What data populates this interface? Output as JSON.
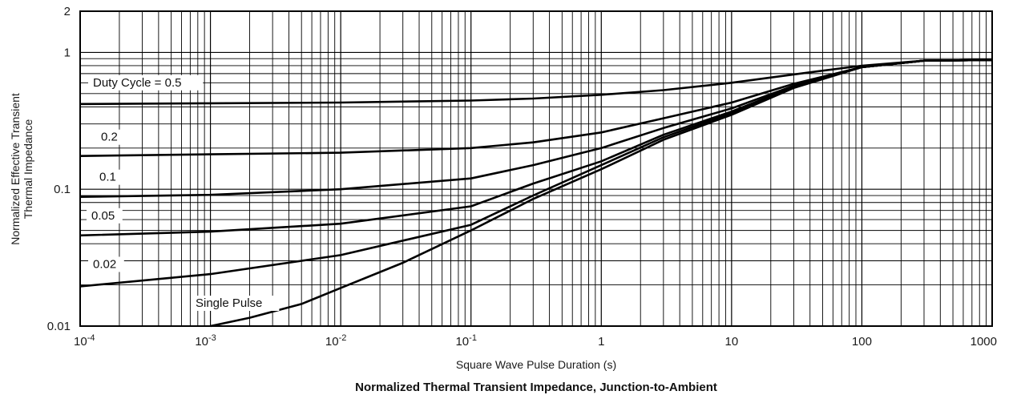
{
  "chart_data": {
    "type": "line",
    "title": "Normalized Thermal Transient Impedance, Junction-to-Ambient",
    "xlabel": "Square Wave Pulse Duration (s)",
    "ylabel_line1": "Normalized Effective Transient",
    "ylabel_line2": "Thermal Impedance",
    "x_scale": "log",
    "y_scale": "log",
    "xlim": [
      0.0001,
      1000
    ],
    "ylim": [
      0.01,
      2
    ],
    "grid": true,
    "legend": "none",
    "x_ticks": [
      {
        "base": "10",
        "exp": "-4",
        "value": 0.0001
      },
      {
        "base": "10",
        "exp": "-3",
        "value": 0.001
      },
      {
        "base": "10",
        "exp": "-2",
        "value": 0.01
      },
      {
        "base": "10",
        "exp": "-1",
        "value": 0.1
      },
      {
        "base": "1",
        "exp": "",
        "value": 1
      },
      {
        "base": "10",
        "exp": "",
        "value": 10
      },
      {
        "base": "100",
        "exp": "",
        "value": 100
      },
      {
        "base": "1000",
        "exp": "",
        "value": 1000
      }
    ],
    "y_ticks": [
      {
        "label": "2",
        "value": 2
      },
      {
        "label": "1",
        "value": 1
      },
      {
        "label": "0.1",
        "value": 0.1
      },
      {
        "label": "0.01",
        "value": 0.01
      }
    ],
    "series": [
      {
        "name": "Duty Cycle = 0.5",
        "x": [
          0.0001,
          0.001,
          0.01,
          0.1,
          0.3,
          1,
          3,
          10,
          30,
          100,
          300,
          1000
        ],
        "y": [
          0.42,
          0.425,
          0.43,
          0.445,
          0.46,
          0.49,
          0.53,
          0.6,
          0.69,
          0.8,
          0.87,
          0.88
        ]
      },
      {
        "name": "0.2",
        "x": [
          0.0001,
          0.001,
          0.01,
          0.1,
          0.3,
          1,
          3,
          10,
          30,
          100,
          300,
          1000
        ],
        "y": [
          0.175,
          0.18,
          0.185,
          0.2,
          0.22,
          0.26,
          0.33,
          0.43,
          0.59,
          0.78,
          0.87,
          0.88
        ]
      },
      {
        "name": "0.1",
        "x": [
          0.0001,
          0.001,
          0.01,
          0.1,
          0.3,
          1,
          3,
          10,
          30,
          100,
          300,
          1000
        ],
        "y": [
          0.088,
          0.091,
          0.1,
          0.12,
          0.15,
          0.2,
          0.28,
          0.39,
          0.57,
          0.78,
          0.87,
          0.88
        ]
      },
      {
        "name": "0.05",
        "x": [
          0.0001,
          0.001,
          0.01,
          0.1,
          0.3,
          1,
          3,
          10,
          30,
          100,
          300,
          1000
        ],
        "y": [
          0.046,
          0.049,
          0.056,
          0.075,
          0.11,
          0.16,
          0.25,
          0.37,
          0.56,
          0.78,
          0.87,
          0.88
        ]
      },
      {
        "name": "0.02",
        "x": [
          0.0001,
          0.001,
          0.01,
          0.1,
          0.3,
          1,
          3,
          10,
          30,
          100,
          300,
          1000
        ],
        "y": [
          0.0195,
          0.024,
          0.033,
          0.055,
          0.09,
          0.15,
          0.24,
          0.36,
          0.56,
          0.78,
          0.87,
          0.88
        ]
      },
      {
        "name": "Single Pulse",
        "x": [
          0.001,
          0.002,
          0.005,
          0.01,
          0.03,
          0.1,
          0.3,
          1,
          3,
          10,
          30,
          100,
          300,
          1000
        ],
        "y": [
          0.01,
          0.0115,
          0.0145,
          0.019,
          0.029,
          0.05,
          0.085,
          0.14,
          0.23,
          0.35,
          0.55,
          0.78,
          0.87,
          0.88
        ]
      }
    ]
  },
  "curve_labels": [
    {
      "series": 0,
      "text": "Duty Cycle = 0.5"
    },
    {
      "series": 1,
      "text": "0.2"
    },
    {
      "series": 2,
      "text": "0.1"
    },
    {
      "series": 3,
      "text": "0.05"
    },
    {
      "series": 4,
      "text": "0.02"
    },
    {
      "series": 5,
      "text": "Single Pulse"
    }
  ]
}
